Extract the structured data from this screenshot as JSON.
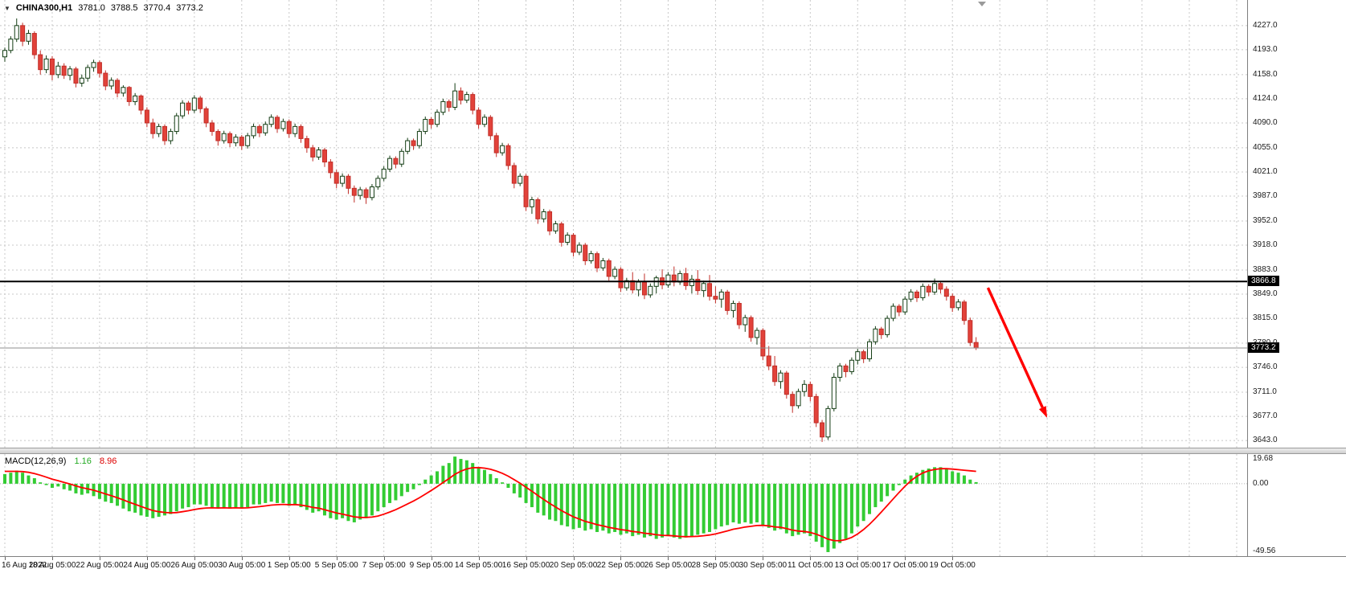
{
  "title": {
    "symbol_period": "CHINA300,H1",
    "open": "3781.0",
    "high": "3788.5",
    "low": "3770.4",
    "close": "3773.2"
  },
  "icons": {
    "dropdown": "▼"
  },
  "colors": {
    "bull_fill": "#ffffff",
    "bull_line": "#143d14",
    "bear_fill": "#e2423a",
    "bear_line": "#c02e28",
    "grid": "#c8c8c8",
    "hline": "#000000",
    "bid_line": "#8f8f8f",
    "macd_bars": "#33cc33",
    "macd_signal": "#ff0000",
    "arrow": "#ff0000"
  },
  "price_axis": {
    "labels": [
      "4227.0",
      "4193.0",
      "4158.0",
      "4124.0",
      "4090.0",
      "4055.0",
      "4021.0",
      "3987.0",
      "3952.0",
      "3918.0",
      "3883.0",
      "3849.0",
      "3815.0",
      "3780.0",
      "3746.0",
      "3711.0",
      "3677.0",
      "3643.0"
    ],
    "hline_tag": "3866.8",
    "bid_tag": "3773.2"
  },
  "macd_label": {
    "name": "MACD(12,26,9)",
    "main_value": "1.16",
    "signal_value": "8.96"
  },
  "chart_data": {
    "type": "candlestick",
    "symbol": "CHINA300",
    "timeframe": "H1",
    "ylim": [
      3633,
      4263
    ],
    "hline": 3866.8,
    "bid": 3773.2,
    "candles": [
      [
        4183,
        4196,
        4176,
        4192
      ],
      [
        4192,
        4212,
        4188,
        4208
      ],
      [
        4208,
        4237,
        4204,
        4227
      ],
      [
        4227,
        4231,
        4198,
        4205
      ],
      [
        4205,
        4221,
        4200,
        4216
      ],
      [
        4216,
        4219,
        4180,
        4186
      ],
      [
        4186,
        4192,
        4158,
        4165
      ],
      [
        4165,
        4185,
        4160,
        4180
      ],
      [
        4180,
        4184,
        4150,
        4158
      ],
      [
        4158,
        4176,
        4153,
        4170
      ],
      [
        4170,
        4174,
        4152,
        4157
      ],
      [
        4157,
        4170,
        4150,
        4166
      ],
      [
        4166,
        4169,
        4140,
        4146
      ],
      [
        4146,
        4158,
        4141,
        4153
      ],
      [
        4153,
        4172,
        4148,
        4168
      ],
      [
        4168,
        4179,
        4162,
        4175
      ],
      [
        4175,
        4178,
        4154,
        4160
      ],
      [
        4160,
        4164,
        4136,
        4142
      ],
      [
        4142,
        4154,
        4137,
        4150
      ],
      [
        4150,
        4153,
        4126,
        4132
      ],
      [
        4132,
        4143,
        4127,
        4140
      ],
      [
        4140,
        4142,
        4114,
        4120
      ],
      [
        4120,
        4132,
        4115,
        4128
      ],
      [
        4128,
        4130,
        4102,
        4108
      ],
      [
        4108,
        4112,
        4084,
        4090
      ],
      [
        4090,
        4096,
        4068,
        4075
      ],
      [
        4075,
        4089,
        4070,
        4085
      ],
      [
        4085,
        4088,
        4059,
        4065
      ],
      [
        4065,
        4082,
        4060,
        4078
      ],
      [
        4078,
        4104,
        4074,
        4100
      ],
      [
        4100,
        4122,
        4096,
        4118
      ],
      [
        4118,
        4121,
        4102,
        4108
      ],
      [
        4108,
        4129,
        4104,
        4125
      ],
      [
        4125,
        4128,
        4104,
        4110
      ],
      [
        4110,
        4113,
        4084,
        4090
      ],
      [
        4090,
        4094,
        4072,
        4078
      ],
      [
        4078,
        4081,
        4058,
        4065
      ],
      [
        4065,
        4079,
        4061,
        4075
      ],
      [
        4075,
        4078,
        4056,
        4062
      ],
      [
        4062,
        4074,
        4057,
        4070
      ],
      [
        4070,
        4073,
        4052,
        4058
      ],
      [
        4058,
        4076,
        4054,
        4072
      ],
      [
        4072,
        4089,
        4068,
        4085
      ],
      [
        4085,
        4088,
        4070,
        4076
      ],
      [
        4076,
        4092,
        4072,
        4088
      ],
      [
        4088,
        4102,
        4084,
        4098
      ],
      [
        4098,
        4101,
        4076,
        4082
      ],
      [
        4082,
        4096,
        4078,
        4092
      ],
      [
        4092,
        4095,
        4069,
        4075
      ],
      [
        4075,
        4089,
        4070,
        4085
      ],
      [
        4085,
        4088,
        4062,
        4068
      ],
      [
        4068,
        4072,
        4048,
        4055
      ],
      [
        4055,
        4059,
        4036,
        4042
      ],
      [
        4042,
        4056,
        4038,
        4052
      ],
      [
        4052,
        4055,
        4028,
        4035
      ],
      [
        4035,
        4039,
        4012,
        4020
      ],
      [
        4020,
        4024,
        3998,
        4005
      ],
      [
        4005,
        4019,
        4000,
        4015
      ],
      [
        4015,
        4018,
        3990,
        3998
      ],
      [
        3998,
        4002,
        3978,
        3988
      ],
      [
        3988,
        4000,
        3982,
        3996
      ],
      [
        3996,
        3999,
        3976,
        3985
      ],
      [
        3985,
        4004,
        3981,
        4000
      ],
      [
        4000,
        4016,
        3996,
        4012
      ],
      [
        4012,
        4029,
        4008,
        4025
      ],
      [
        4025,
        4044,
        4021,
        4040
      ],
      [
        4040,
        4043,
        4026,
        4032
      ],
      [
        4032,
        4054,
        4028,
        4050
      ],
      [
        4050,
        4069,
        4046,
        4065
      ],
      [
        4065,
        4068,
        4052,
        4058
      ],
      [
        4058,
        4082,
        4054,
        4078
      ],
      [
        4078,
        4099,
        4074,
        4095
      ],
      [
        4095,
        4098,
        4082,
        4088
      ],
      [
        4088,
        4109,
        4084,
        4105
      ],
      [
        4105,
        4124,
        4101,
        4120
      ],
      [
        4120,
        4123,
        4106,
        4112
      ],
      [
        4112,
        4146,
        4108,
        4135
      ],
      [
        4135,
        4140,
        4116,
        4122
      ],
      [
        4122,
        4134,
        4118,
        4130
      ],
      [
        4130,
        4133,
        4102,
        4108
      ],
      [
        4108,
        4112,
        4082,
        4088
      ],
      [
        4088,
        4102,
        4084,
        4098
      ],
      [
        4098,
        4101,
        4066,
        4072
      ],
      [
        4072,
        4076,
        4042,
        4048
      ],
      [
        4048,
        4062,
        4044,
        4058
      ],
      [
        4058,
        4061,
        4024,
        4030
      ],
      [
        4030,
        4034,
        3998,
        4005
      ],
      [
        4005,
        4019,
        4001,
        4015
      ],
      [
        4015,
        4018,
        3966,
        3972
      ],
      [
        3972,
        3986,
        3962,
        3982
      ],
      [
        3982,
        3985,
        3948,
        3955
      ],
      [
        3955,
        3969,
        3950,
        3965
      ],
      [
        3965,
        3968,
        3932,
        3938
      ],
      [
        3938,
        3952,
        3934,
        3948
      ],
      [
        3948,
        3951,
        3916,
        3922
      ],
      [
        3922,
        3936,
        3918,
        3932
      ],
      [
        3932,
        3935,
        3902,
        3908
      ],
      [
        3908,
        3922,
        3904,
        3918
      ],
      [
        3918,
        3921,
        3890,
        3896
      ],
      [
        3896,
        3910,
        3892,
        3906
      ],
      [
        3906,
        3909,
        3880,
        3886
      ],
      [
        3886,
        3900,
        3882,
        3896
      ],
      [
        3896,
        3899,
        3868,
        3874
      ],
      [
        3874,
        3888,
        3870,
        3884
      ],
      [
        3884,
        3887,
        3852,
        3858
      ],
      [
        3858,
        3872,
        3854,
        3868
      ],
      [
        3868,
        3880,
        3850,
        3855
      ],
      [
        3855,
        3870,
        3846,
        3866
      ],
      [
        3866,
        3878,
        3842,
        3848
      ],
      [
        3848,
        3864,
        3844,
        3860
      ],
      [
        3860,
        3875,
        3850,
        3872
      ],
      [
        3872,
        3884,
        3856,
        3862
      ],
      [
        3862,
        3880,
        3858,
        3876
      ],
      [
        3876,
        3888,
        3860,
        3866
      ],
      [
        3866,
        3882,
        3862,
        3878
      ],
      [
        3878,
        3886,
        3855,
        3861
      ],
      [
        3861,
        3876,
        3850,
        3870
      ],
      [
        3870,
        3883,
        3848,
        3854
      ],
      [
        3854,
        3868,
        3845,
        3864
      ],
      [
        3864,
        3876,
        3840,
        3846
      ],
      [
        3846,
        3860,
        3836,
        3842
      ],
      [
        3842,
        3856,
        3830,
        3852
      ],
      [
        3852,
        3855,
        3820,
        3826
      ],
      [
        3826,
        3840,
        3816,
        3836
      ],
      [
        3836,
        3839,
        3800,
        3806
      ],
      [
        3806,
        3820,
        3796,
        3816
      ],
      [
        3816,
        3819,
        3782,
        3788
      ],
      [
        3788,
        3802,
        3778,
        3798
      ],
      [
        3798,
        3801,
        3756,
        3762
      ],
      [
        3762,
        3776,
        3742,
        3748
      ],
      [
        3748,
        3762,
        3720,
        3726
      ],
      [
        3726,
        3742,
        3716,
        3738
      ],
      [
        3738,
        3741,
        3702,
        3708
      ],
      [
        3708,
        3712,
        3682,
        3692
      ],
      [
        3692,
        3716,
        3688,
        3712
      ],
      [
        3712,
        3728,
        3705,
        3722
      ],
      [
        3722,
        3726,
        3698,
        3705
      ],
      [
        3705,
        3709,
        3662,
        3668
      ],
      [
        3668,
        3672,
        3641,
        3648
      ],
      [
        3648,
        3692,
        3644,
        3688
      ],
      [
        3688,
        3738,
        3684,
        3732
      ],
      [
        3732,
        3752,
        3726,
        3748
      ],
      [
        3748,
        3751,
        3732,
        3740
      ],
      [
        3740,
        3760,
        3736,
        3756
      ],
      [
        3756,
        3772,
        3750,
        3768
      ],
      [
        3768,
        3771,
        3752,
        3758
      ],
      [
        3758,
        3786,
        3754,
        3782
      ],
      [
        3782,
        3804,
        3778,
        3800
      ],
      [
        3800,
        3803,
        3786,
        3792
      ],
      [
        3792,
        3819,
        3788,
        3815
      ],
      [
        3815,
        3836,
        3811,
        3832
      ],
      [
        3832,
        3835,
        3818,
        3824
      ],
      [
        3824,
        3846,
        3820,
        3842
      ],
      [
        3842,
        3856,
        3838,
        3852
      ],
      [
        3852,
        3855,
        3838,
        3844
      ],
      [
        3844,
        3864,
        3840,
        3860
      ],
      [
        3860,
        3863,
        3846,
        3852
      ],
      [
        3852,
        3871,
        3848,
        3864
      ],
      [
        3864,
        3867,
        3850,
        3856
      ],
      [
        3856,
        3860,
        3840,
        3846
      ],
      [
        3846,
        3850,
        3824,
        3830
      ],
      [
        3830,
        3842,
        3826,
        3838
      ],
      [
        3838,
        3841,
        3806,
        3812
      ],
      [
        3812,
        3816,
        3776,
        3781
      ],
      [
        3781,
        3788.5,
        3770.4,
        3773.2
      ]
    ],
    "time_ticks": {
      "labels": [
        "16 Aug 2022",
        "18 Aug 05:00",
        "22 Aug 05:00",
        "24 Aug 05:00",
        "26 Aug 05:00",
        "30 Aug 05:00",
        "1 Sep 05:00",
        "5 Sep 05:00",
        "7 Sep 05:00",
        "9 Sep 05:00",
        "14 Sep 05:00",
        "16 Sep 05:00",
        "20 Sep 05:00",
        "22 Sep 05:00",
        "26 Sep 05:00",
        "28 Sep 05:00",
        "30 Sep 05:00",
        "11 Oct 05:00",
        "13 Oct 05:00",
        "17 Oct 05:00",
        "19 Oct 05:00"
      ],
      "candle_indices": [
        0,
        8,
        16,
        24,
        32,
        40,
        48,
        56,
        64,
        72,
        80,
        88,
        96,
        104,
        112,
        120,
        128,
        136,
        144,
        152,
        160
      ],
      "future_indices": [
        168,
        176,
        184,
        192,
        200,
        208
      ]
    },
    "macd": {
      "params": "12,26,9",
      "last_main": 1.16,
      "last_signal": 8.96,
      "ylim": [
        -52.5,
        21.5
      ],
      "axis_labels": [
        "19.68",
        "0.00",
        "-49.56"
      ],
      "histogram": [
        7,
        8,
        9.5,
        8,
        6,
        4,
        1,
        -1,
        -3,
        -2,
        -4,
        -5,
        -7,
        -8,
        -7,
        -9,
        -11,
        -13,
        -14,
        -16,
        -18,
        -20,
        -21,
        -23,
        -24,
        -25,
        -24,
        -23,
        -22,
        -20,
        -18,
        -17,
        -15,
        -15,
        -16,
        -17,
        -18,
        -17,
        -18,
        -17,
        -18,
        -17,
        -15,
        -15,
        -14,
        -13,
        -14,
        -14,
        -16,
        -15,
        -17,
        -19,
        -21,
        -20,
        -23,
        -25,
        -26,
        -25,
        -27,
        -28,
        -26,
        -25,
        -23,
        -20,
        -17,
        -14,
        -12,
        -9,
        -6,
        -4,
        -1,
        3,
        6,
        9,
        13,
        15,
        19.68,
        18,
        17,
        15,
        12,
        10,
        7,
        4,
        1,
        -3,
        -7,
        -10,
        -14,
        -17,
        -21,
        -23,
        -26,
        -27,
        -30,
        -31,
        -33,
        -32,
        -34,
        -33,
        -35,
        -34,
        -36,
        -35,
        -37,
        -36,
        -38,
        -37,
        -39,
        -38,
        -40,
        -39,
        -38,
        -39,
        -40,
        -39,
        -38,
        -37,
        -36,
        -35,
        -33,
        -31,
        -30,
        -28,
        -29,
        -28,
        -29,
        -28,
        -30,
        -32,
        -34,
        -33,
        -36,
        -38,
        -37,
        -36,
        -38,
        -42,
        -46,
        -49.56,
        -47,
        -43,
        -40,
        -36,
        -31,
        -27,
        -22,
        -17,
        -13,
        -9,
        -5,
        -1,
        3,
        6,
        8,
        10,
        11,
        12,
        12,
        11,
        9,
        8,
        6,
        3,
        1.16
      ],
      "signal": [
        9,
        9,
        9,
        8.8,
        8.3,
        7.4,
        6.2,
        4.8,
        3.3,
        2.2,
        1,
        -0.2,
        -1.6,
        -2.8,
        -3.7,
        -4.7,
        -6,
        -7.4,
        -8.7,
        -10.2,
        -11.7,
        -13.4,
        -14.9,
        -16.5,
        -18,
        -19.4,
        -20.3,
        -20.8,
        -21.1,
        -20.9,
        -20.3,
        -19.6,
        -18.7,
        -18,
        -17.6,
        -17.5,
        -17.6,
        -17.5,
        -17.6,
        -17.5,
        -17.6,
        -17.5,
        -17,
        -16.6,
        -16.1,
        -15.5,
        -15.2,
        -15,
        -15.2,
        -15.1,
        -15.5,
        -16.2,
        -17.2,
        -17.7,
        -18.8,
        -20,
        -21.2,
        -22,
        -23,
        -24,
        -24.4,
        -24.5,
        -24.2,
        -23.4,
        -22.1,
        -20.5,
        -18.8,
        -16.8,
        -14.7,
        -12.5,
        -10.2,
        -7.6,
        -4.9,
        -2.1,
        0.9,
        3.7,
        6.9,
        9.1,
        10.7,
        11.6,
        11.7,
        11.3,
        10.5,
        9.2,
        7.6,
        5.5,
        3,
        0.4,
        -2.5,
        -5.4,
        -8.5,
        -11.4,
        -14.3,
        -16.9,
        -19.5,
        -21.8,
        -24,
        -25.6,
        -27.3,
        -28.4,
        -29.7,
        -30.6,
        -31.7,
        -32.4,
        -33.3,
        -33.8,
        -34.6,
        -35.1,
        -35.9,
        -36.3,
        -37,
        -37.4,
        -37.5,
        -37.8,
        -38.2,
        -38.4,
        -38.3,
        -38.1,
        -37.7,
        -37.2,
        -36.4,
        -35.3,
        -34.2,
        -33,
        -32.2,
        -31.4,
        -30.9,
        -30.3,
        -30.2,
        -30.6,
        -31.3,
        -31.6,
        -32.5,
        -33.6,
        -34.3,
        -34.6,
        -35.3,
        -36.6,
        -38.3,
        -40.2,
        -41.2,
        -41.3,
        -40.5,
        -38.9,
        -36.4,
        -33.2,
        -29.4,
        -25.1,
        -20.5,
        -15.8,
        -11,
        -6.3,
        -1.8,
        2.2,
        5.4,
        7.8,
        9.4,
        10.4,
        10.9,
        10.9,
        10.6,
        10.2,
        9.8,
        9.4,
        8.96
      ]
    },
    "arrow": {
      "from_candle": 166,
      "from_price": 3858,
      "to_candle": 176,
      "to_price": 3675
    }
  }
}
